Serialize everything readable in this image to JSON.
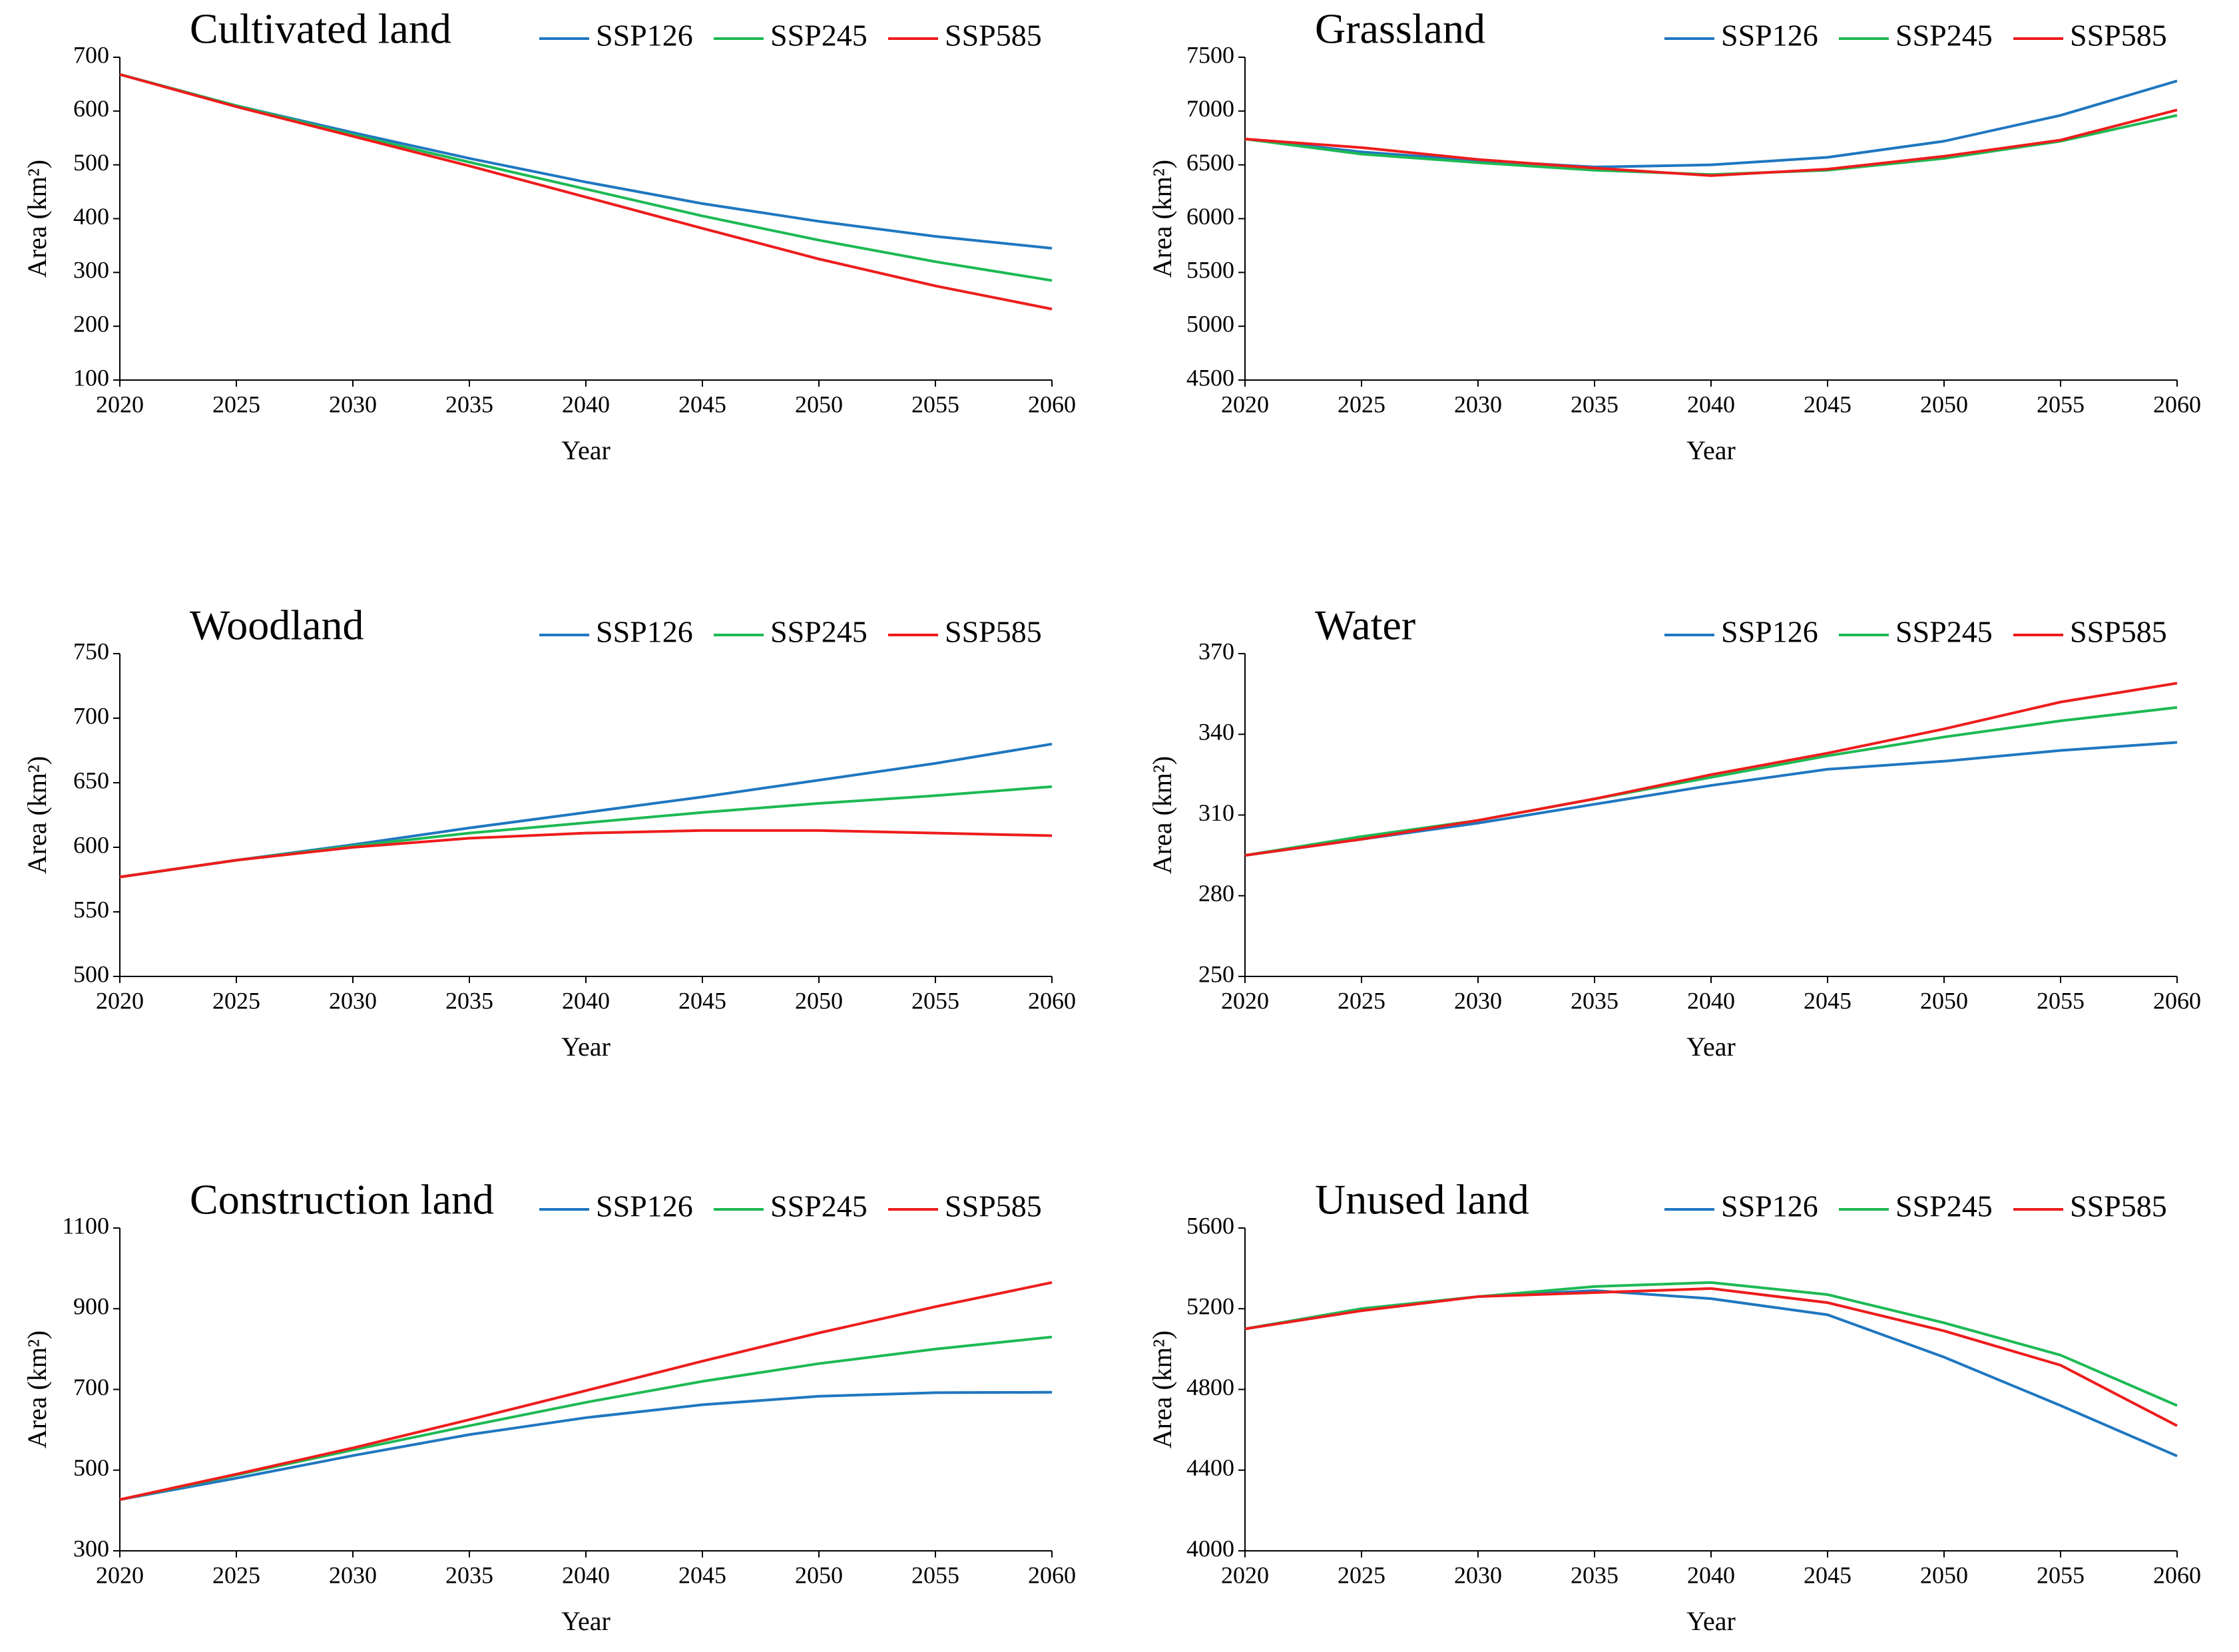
{
  "chart_data": [
    {
      "type": "line",
      "title": "Cultivated land",
      "x_label": "Year",
      "y_label": "Area (km²)",
      "x": [
        2020,
        2025,
        2030,
        2035,
        2040,
        2045,
        2050,
        2055,
        2060
      ],
      "series": [
        {
          "name": "SSP126",
          "color": "#1f77c0",
          "values": [
            668,
            610,
            560,
            512,
            468,
            428,
            395,
            367,
            345
          ]
        },
        {
          "name": "SSP245",
          "color": "#1db954",
          "values": [
            668,
            610,
            556,
            505,
            455,
            405,
            360,
            320,
            285
          ]
        },
        {
          "name": "SSP585",
          "color": "#ee1c1c",
          "values": [
            668,
            608,
            553,
            498,
            440,
            382,
            325,
            275,
            232
          ]
        }
      ],
      "xlim": [
        2020,
        2060
      ],
      "xticks": [
        2020,
        2025,
        2030,
        2035,
        2040,
        2045,
        2050,
        2055,
        2060
      ],
      "ylim": [
        100,
        700
      ],
      "yticks": [
        100,
        200,
        300,
        400,
        500,
        600,
        700
      ]
    },
    {
      "type": "line",
      "title": "Grassland",
      "x_label": "Year",
      "y_label": "Area (km²)",
      "x": [
        2020,
        2025,
        2030,
        2035,
        2040,
        2045,
        2050,
        2055,
        2060
      ],
      "series": [
        {
          "name": "SSP126",
          "color": "#1f77c0",
          "values": [
            6740,
            6620,
            6540,
            6480,
            6500,
            6570,
            6720,
            6960,
            7280
          ]
        },
        {
          "name": "SSP245",
          "color": "#1db954",
          "values": [
            6740,
            6600,
            6520,
            6450,
            6410,
            6450,
            6560,
            6720,
            6960
          ]
        },
        {
          "name": "SSP585",
          "color": "#ee1c1c",
          "values": [
            6740,
            6660,
            6550,
            6470,
            6400,
            6460,
            6580,
            6730,
            7010
          ]
        }
      ],
      "xlim": [
        2020,
        2060
      ],
      "xticks": [
        2020,
        2025,
        2030,
        2035,
        2040,
        2045,
        2050,
        2055,
        2060
      ],
      "ylim": [
        4500,
        7500
      ],
      "yticks": [
        4500,
        5000,
        5500,
        6000,
        6500,
        7000,
        7500
      ]
    },
    {
      "type": "line",
      "title": "Woodland",
      "x_label": "Year",
      "y_label": "Area (km²)",
      "x": [
        2020,
        2025,
        2030,
        2035,
        2040,
        2045,
        2050,
        2055,
        2060
      ],
      "series": [
        {
          "name": "SSP126",
          "color": "#1f77c0",
          "values": [
            577,
            590,
            602,
            615,
            627,
            639,
            652,
            665,
            680
          ]
        },
        {
          "name": "SSP245",
          "color": "#1db954",
          "values": [
            577,
            590,
            601,
            611,
            619,
            627,
            634,
            640,
            647
          ]
        },
        {
          "name": "SSP585",
          "color": "#ee1c1c",
          "values": [
            577,
            590,
            600,
            607,
            611,
            613,
            613,
            611,
            609
          ]
        }
      ],
      "xlim": [
        2020,
        2060
      ],
      "xticks": [
        2020,
        2025,
        2030,
        2035,
        2040,
        2045,
        2050,
        2055,
        2060
      ],
      "ylim": [
        500,
        750
      ],
      "yticks": [
        500,
        550,
        600,
        650,
        700,
        750
      ]
    },
    {
      "type": "line",
      "title": "Water",
      "x_label": "Year",
      "y_label": "Area (km²)",
      "x": [
        2020,
        2025,
        2030,
        2035,
        2040,
        2045,
        2050,
        2055,
        2060
      ],
      "series": [
        {
          "name": "SSP126",
          "color": "#1f77c0",
          "values": [
            295,
            301,
            307,
            314,
            321,
            327,
            330,
            334,
            337
          ]
        },
        {
          "name": "SSP245",
          "color": "#1db954",
          "values": [
            295,
            302,
            308,
            316,
            324,
            332,
            339,
            345,
            350
          ]
        },
        {
          "name": "SSP585",
          "color": "#ee1c1c",
          "values": [
            295,
            301,
            308,
            316,
            325,
            333,
            342,
            352,
            359
          ]
        }
      ],
      "xlim": [
        2020,
        2060
      ],
      "xticks": [
        2020,
        2025,
        2030,
        2035,
        2040,
        2045,
        2050,
        2055,
        2060
      ],
      "ylim": [
        250,
        370
      ],
      "yticks": [
        250,
        280,
        310,
        340,
        370
      ]
    },
    {
      "type": "line",
      "title": "Construction land",
      "x_label": "Year",
      "y_label": "Area (km²)",
      "x": [
        2020,
        2025,
        2030,
        2035,
        2040,
        2045,
        2050,
        2055,
        2060
      ],
      "series": [
        {
          "name": "SSP126",
          "color": "#1f77c0",
          "values": [
            427,
            480,
            536,
            588,
            630,
            662,
            683,
            692,
            693
          ]
        },
        {
          "name": "SSP245",
          "color": "#1db954",
          "values": [
            427,
            488,
            550,
            610,
            668,
            720,
            764,
            800,
            830
          ]
        },
        {
          "name": "SSP585",
          "color": "#ee1c1c",
          "values": [
            427,
            490,
            555,
            625,
            697,
            770,
            840,
            905,
            965
          ]
        }
      ],
      "xlim": [
        2020,
        2060
      ],
      "xticks": [
        2020,
        2025,
        2030,
        2035,
        2040,
        2045,
        2050,
        2055,
        2060
      ],
      "ylim": [
        300,
        1100
      ],
      "yticks": [
        300,
        500,
        700,
        900,
        1100
      ]
    },
    {
      "type": "line",
      "title": "Unused land",
      "x_label": "Year",
      "y_label": "Area (km²)",
      "x": [
        2020,
        2025,
        2030,
        2035,
        2040,
        2045,
        2050,
        2055,
        2060
      ],
      "series": [
        {
          "name": "SSP126",
          "color": "#1f77c0",
          "values": [
            5100,
            5200,
            5260,
            5290,
            5250,
            5170,
            4960,
            4720,
            4470
          ]
        },
        {
          "name": "SSP245",
          "color": "#1db954",
          "values": [
            5100,
            5200,
            5260,
            5310,
            5330,
            5270,
            5130,
            4970,
            4720
          ]
        },
        {
          "name": "SSP585",
          "color": "#ee1c1c",
          "values": [
            5100,
            5190,
            5260,
            5280,
            5300,
            5230,
            5090,
            4920,
            4620
          ]
        }
      ],
      "xlim": [
        2020,
        2060
      ],
      "xticks": [
        2020,
        2025,
        2030,
        2035,
        2040,
        2045,
        2050,
        2055,
        2060
      ],
      "ylim": [
        4000,
        5600
      ],
      "yticks": [
        4000,
        4400,
        4800,
        5200,
        5600
      ]
    }
  ]
}
